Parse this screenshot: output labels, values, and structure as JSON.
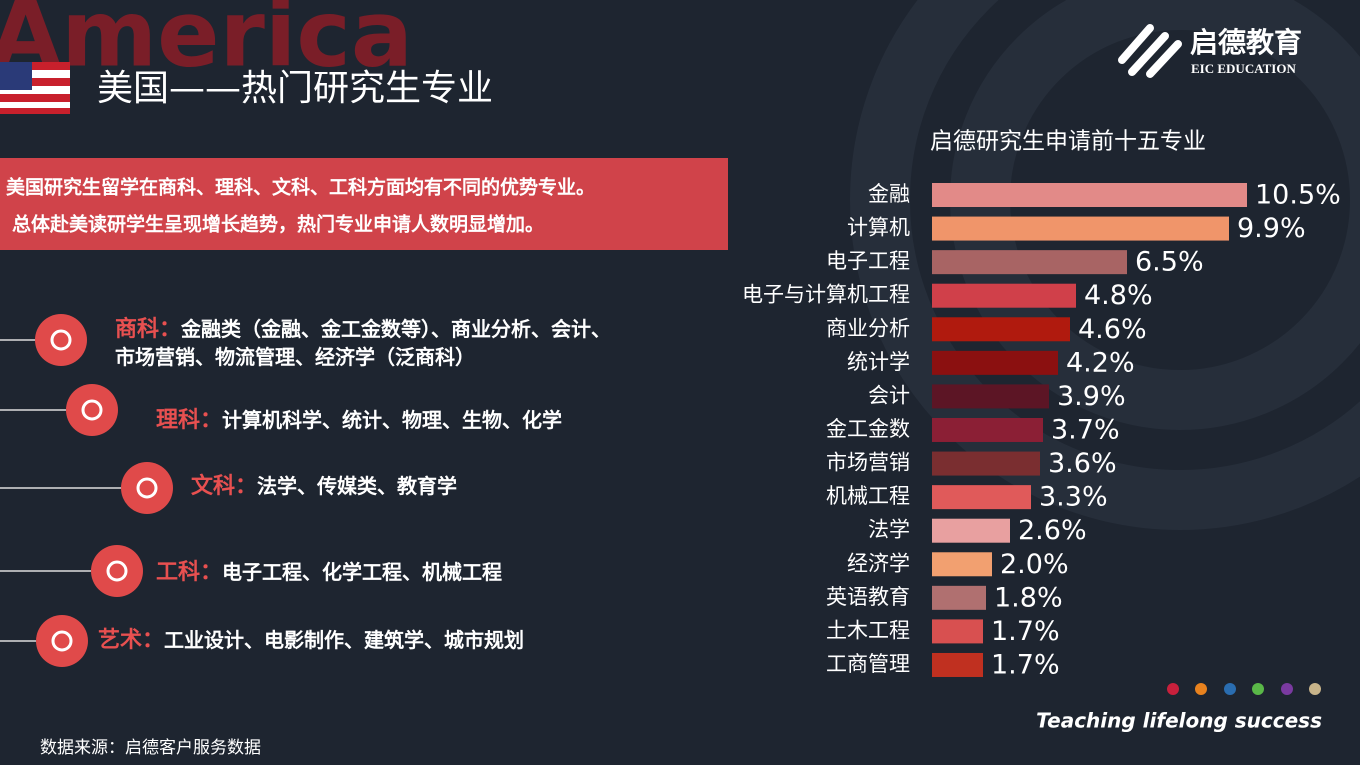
{
  "header": {
    "watermark": "America",
    "title": "美国——热门研究生专业"
  },
  "logo": {
    "name": "启德教育",
    "sub": "EIC EDUCATION"
  },
  "banner": {
    "lines": [
      "美国研究生留学在商科、理科、文科、工科方面均有不同的优势专业。",
      "总体赴美读研学生呈现增长趋势，热门专业申请人数明显增加。"
    ]
  },
  "subjects": [
    {
      "label": "商科：",
      "lines": [
        "金融类（金融、金工金数等）、商业分析、会计、",
        "市场营销、物流管理、经济学（泛商科）"
      ]
    },
    {
      "label": "理科：",
      "lines": [
        "计算机科学、统计、物理、生物、化学"
      ]
    },
    {
      "label": "文科：",
      "lines": [
        "法学、传媒类、教育学"
      ]
    },
    {
      "label": "工科：",
      "lines": [
        "电子工程、化学工程、机械工程"
      ]
    },
    {
      "label": "艺术：",
      "lines": [
        "工业设计、电影制作、建筑学、城市规划"
      ]
    }
  ],
  "chart_data": {
    "type": "bar",
    "orientation": "horizontal",
    "title": "启德研究生申请前十五专业",
    "categories": [
      "金融",
      "计算机",
      "电子工程",
      "电子与计算机工程",
      "商业分析",
      "统计学",
      "会计",
      "金工金数",
      "市场营销",
      "机械工程",
      "法学",
      "经济学",
      "英语教育",
      "土木工程",
      "工商管理"
    ],
    "values": [
      10.5,
      9.9,
      6.5,
      4.8,
      4.6,
      4.2,
      3.9,
      3.7,
      3.6,
      3.3,
      2.6,
      2.0,
      1.8,
      1.7,
      1.7
    ],
    "value_labels": [
      "10.5%",
      "9.9%",
      "6.5%",
      "4.8%",
      "4.6%",
      "4.2%",
      "3.9%",
      "3.7%",
      "3.6%",
      "3.3%",
      "2.6%",
      "2.0%",
      "1.8%",
      "1.7%",
      "1.7%"
    ],
    "colors": [
      "#e28a88",
      "#f0956a",
      "#a86464",
      "#d0404a",
      "#b01a0e",
      "#8b1010",
      "#5c1525",
      "#8b1f35",
      "#7a2e30",
      "#e05a5a",
      "#e8a0a0",
      "#f2a070",
      "#b07070",
      "#d85050",
      "#c03020"
    ]
  },
  "footer": {
    "slogan": "Teaching lifelong success",
    "source": "数据来源：启德客户服务数据"
  }
}
